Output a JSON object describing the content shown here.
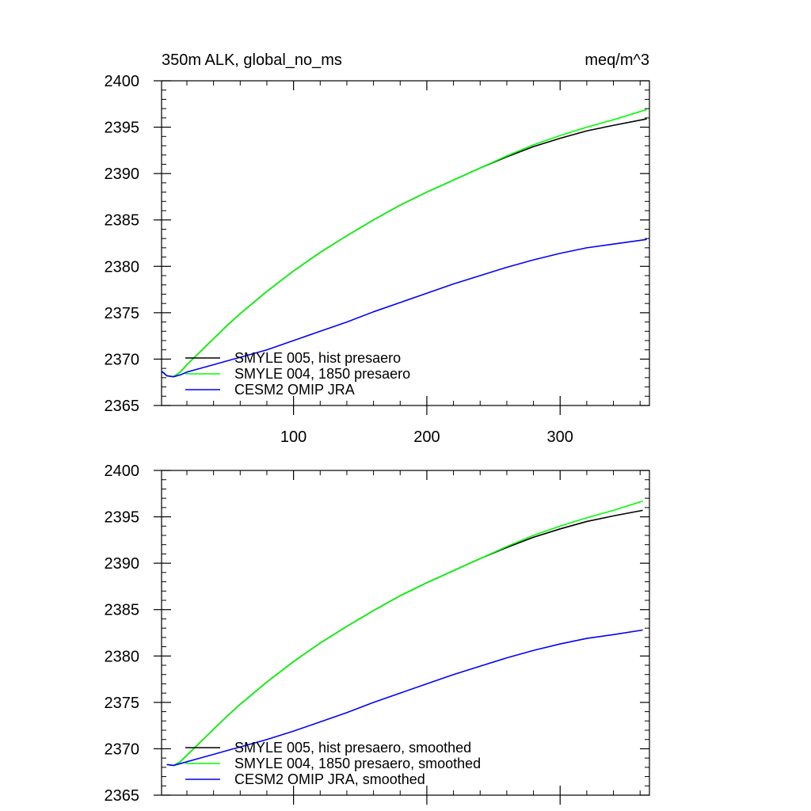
{
  "chart_data": [
    {
      "type": "line",
      "title": "350m ALK, global_no_ms",
      "units": "meq/m^3",
      "xlabel": "",
      "ylabel": "",
      "xlim": [
        1,
        367
      ],
      "ylim": [
        2365,
        2400
      ],
      "xticks": [
        100,
        200,
        300
      ],
      "yticks": [
        2365,
        2370,
        2375,
        2380,
        2385,
        2390,
        2395,
        2400
      ],
      "show_x_tick_labels": true,
      "grid": false,
      "legend_position": "bottom-left",
      "series": [
        {
          "name": "SMYLE 005, hist presaero",
          "color": "#000000",
          "x": [
            1,
            5,
            10,
            15,
            20,
            30,
            40,
            50,
            60,
            80,
            100,
            120,
            140,
            160,
            180,
            200,
            220,
            240,
            260,
            280,
            300,
            320,
            340,
            365
          ],
          "values": [
            2368.7,
            2368.2,
            2368.1,
            2368.6,
            2369.4,
            2370.8,
            2372.2,
            2373.6,
            2374.9,
            2377.3,
            2379.5,
            2381.5,
            2383.3,
            2385.0,
            2386.6,
            2388.0,
            2389.3,
            2390.6,
            2391.8,
            2392.9,
            2393.8,
            2394.6,
            2395.2,
            2395.9
          ]
        },
        {
          "name": "SMYLE 004, 1850 presaero",
          "color": "#00ff00",
          "x": [
            1,
            5,
            10,
            15,
            20,
            30,
            40,
            50,
            60,
            80,
            100,
            120,
            140,
            160,
            180,
            200,
            220,
            240,
            260,
            280,
            300,
            320,
            340,
            365
          ],
          "values": [
            2368.7,
            2368.2,
            2368.1,
            2368.6,
            2369.4,
            2370.8,
            2372.2,
            2373.6,
            2374.9,
            2377.3,
            2379.5,
            2381.5,
            2383.3,
            2385.0,
            2386.6,
            2388.0,
            2389.3,
            2390.6,
            2391.9,
            2393.1,
            2394.1,
            2395.0,
            2395.8,
            2396.9
          ]
        },
        {
          "name": "CESM2 OMIP JRA",
          "color": "#0000ff",
          "x": [
            1,
            5,
            10,
            15,
            20,
            30,
            40,
            50,
            60,
            80,
            100,
            120,
            140,
            160,
            180,
            200,
            220,
            240,
            260,
            280,
            300,
            320,
            340,
            365
          ],
          "values": [
            2368.7,
            2368.2,
            2368.1,
            2368.3,
            2368.6,
            2369.0,
            2369.4,
            2369.8,
            2370.2,
            2371.0,
            2372.0,
            2373.0,
            2374.0,
            2375.1,
            2376.1,
            2377.1,
            2378.1,
            2379.0,
            2379.9,
            2380.7,
            2381.4,
            2382.0,
            2382.4,
            2382.9
          ]
        }
      ]
    },
    {
      "type": "line",
      "title": "",
      "units": "",
      "xlabel": "",
      "ylabel": "",
      "xlim": [
        1,
        367
      ],
      "ylim": [
        2365,
        2400
      ],
      "xticks": [
        100,
        200,
        300
      ],
      "yticks": [
        2365,
        2370,
        2375,
        2380,
        2385,
        2390,
        2395,
        2400
      ],
      "show_x_tick_labels": false,
      "grid": false,
      "legend_position": "bottom-left",
      "series": [
        {
          "name": "SMYLE 005, hist presaero, smoothed",
          "color": "#000000",
          "x": [
            5,
            10,
            15,
            20,
            30,
            40,
            50,
            60,
            80,
            100,
            120,
            140,
            160,
            180,
            200,
            220,
            240,
            260,
            280,
            300,
            320,
            340,
            362
          ],
          "values": [
            2368.3,
            2368.2,
            2368.6,
            2369.3,
            2370.7,
            2372.1,
            2373.5,
            2374.8,
            2377.2,
            2379.4,
            2381.4,
            2383.2,
            2384.9,
            2386.5,
            2387.9,
            2389.2,
            2390.5,
            2391.7,
            2392.8,
            2393.7,
            2394.5,
            2395.1,
            2395.7
          ]
        },
        {
          "name": "SMYLE 004, 1850 presaero, smoothed",
          "color": "#00ff00",
          "x": [
            5,
            10,
            15,
            20,
            30,
            40,
            50,
            60,
            80,
            100,
            120,
            140,
            160,
            180,
            200,
            220,
            240,
            260,
            280,
            300,
            320,
            340,
            362
          ],
          "values": [
            2368.3,
            2368.2,
            2368.6,
            2369.3,
            2370.7,
            2372.1,
            2373.5,
            2374.8,
            2377.2,
            2379.4,
            2381.4,
            2383.2,
            2384.9,
            2386.5,
            2387.9,
            2389.2,
            2390.5,
            2391.8,
            2393.0,
            2394.0,
            2394.9,
            2395.7,
            2396.7
          ]
        },
        {
          "name": "CESM2 OMIP JRA, smoothed",
          "color": "#0000ff",
          "x": [
            5,
            10,
            15,
            20,
            30,
            40,
            50,
            60,
            80,
            100,
            120,
            140,
            160,
            180,
            200,
            220,
            240,
            260,
            280,
            300,
            320,
            340,
            362
          ],
          "values": [
            2368.3,
            2368.2,
            2368.4,
            2368.6,
            2369.0,
            2369.4,
            2369.8,
            2370.2,
            2371.0,
            2371.9,
            2372.9,
            2373.9,
            2375.0,
            2376.0,
            2377.0,
            2378.0,
            2378.9,
            2379.8,
            2380.6,
            2381.3,
            2381.9,
            2382.3,
            2382.8
          ]
        }
      ]
    }
  ]
}
